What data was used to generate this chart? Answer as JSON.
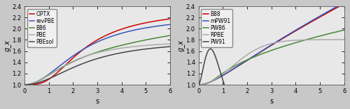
{
  "s_max": 6.0,
  "n_points": 600,
  "ylim": [
    1.0,
    2.4
  ],
  "xlim": [
    0.0,
    6.0
  ],
  "yticks": [
    1.0,
    1.2,
    1.4,
    1.6,
    1.8,
    2.0,
    2.2,
    2.4
  ],
  "xticks": [
    0,
    1,
    2,
    3,
    4,
    5,
    6
  ],
  "xlabel": "s",
  "ylabel": "g_x",
  "figsize": [
    5.0,
    1.57
  ],
  "dpi": 100,
  "left_legend": [
    "OPTX",
    "revPBE",
    "B86",
    "PBE",
    "PBEsol"
  ],
  "left_colors": [
    "#cc0000",
    "#3355bb",
    "#448833",
    "#aaaaaa",
    "#444444"
  ],
  "right_legend": [
    "B88",
    "mPW91",
    "PW86",
    "RPBE",
    "PW91"
  ],
  "right_colors": [
    "#cc0000",
    "#3355bb",
    "#448833",
    "#aaaaaa",
    "#444444"
  ],
  "linewidth": 1.1,
  "bg_color": "#c8c8c8",
  "plot_bg_color": "#e8e8e8",
  "tick_labelsize": 6,
  "legend_fontsize": 5.5
}
